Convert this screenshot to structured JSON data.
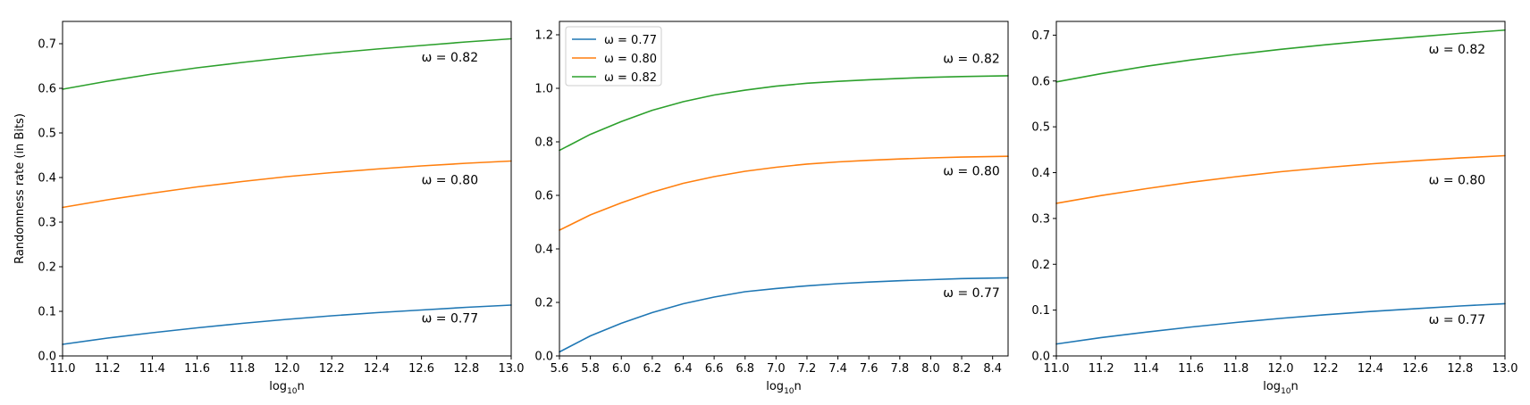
{
  "figure": {
    "background": "#ffffff"
  },
  "chart_data": [
    {
      "type": "line",
      "xlabel": "log10 n",
      "xlabel_main": "log",
      "xlabel_sub": "10",
      "xlabel_tail": "n",
      "ylabel": "Randomness rate (in Bits)",
      "xlim": [
        11.0,
        13.0
      ],
      "ylim": [
        0.0,
        0.75
      ],
      "xticks": [
        11.0,
        11.2,
        11.4,
        11.6,
        11.8,
        12.0,
        12.2,
        12.4,
        12.6,
        12.8,
        13.0
      ],
      "xtick_labels": [
        "11.0",
        "11.2",
        "11.4",
        "11.6",
        "11.8",
        "12.0",
        "12.2",
        "12.4",
        "12.6",
        "12.8",
        "13.0"
      ],
      "yticks": [
        0.0,
        0.1,
        0.2,
        0.3,
        0.4,
        0.5,
        0.6,
        0.7
      ],
      "ytick_labels": [
        "0.0",
        "0.1",
        "0.2",
        "0.3",
        "0.4",
        "0.5",
        "0.6",
        "0.7"
      ],
      "grid": false,
      "legend": null,
      "series": [
        {
          "color": "#1f77b4",
          "x": [
            11.0,
            11.2,
            11.4,
            11.6,
            11.8,
            12.0,
            12.2,
            12.4,
            12.6,
            12.8,
            13.0
          ],
          "y": [
            0.026,
            0.04,
            0.052,
            0.063,
            0.073,
            0.082,
            0.09,
            0.097,
            0.103,
            0.109,
            0.114
          ]
        },
        {
          "color": "#ff7f0e",
          "x": [
            11.0,
            11.2,
            11.4,
            11.6,
            11.8,
            12.0,
            12.2,
            12.4,
            12.6,
            12.8,
            13.0
          ],
          "y": [
            0.333,
            0.35,
            0.365,
            0.379,
            0.391,
            0.402,
            0.411,
            0.419,
            0.426,
            0.432,
            0.437
          ]
        },
        {
          "color": "#2ca02c",
          "x": [
            11.0,
            11.2,
            11.4,
            11.6,
            11.8,
            12.0,
            12.2,
            12.4,
            12.6,
            12.8,
            13.0
          ],
          "y": [
            0.598,
            0.616,
            0.632,
            0.646,
            0.658,
            0.669,
            0.679,
            0.688,
            0.696,
            0.704,
            0.711
          ]
        }
      ],
      "annotations": [
        {
          "text": "ω = 0.82",
          "x": 12.6,
          "y": 0.66
        },
        {
          "text": "ω = 0.80",
          "x": 12.6,
          "y": 0.385
        },
        {
          "text": "ω = 0.77",
          "x": 12.6,
          "y": 0.075
        }
      ]
    },
    {
      "type": "line",
      "xlabel": "log10 n",
      "xlabel_main": "log",
      "xlabel_sub": "10",
      "xlabel_tail": "n",
      "ylabel": "",
      "xlim": [
        5.6,
        8.5
      ],
      "ylim": [
        0.0,
        1.25
      ],
      "xticks": [
        5.6,
        5.8,
        6.0,
        6.2,
        6.4,
        6.6,
        6.8,
        7.0,
        7.2,
        7.4,
        7.6,
        7.8,
        8.0,
        8.2,
        8.4
      ],
      "xtick_labels": [
        "5.6",
        "5.8",
        "6.0",
        "6.2",
        "6.4",
        "6.6",
        "6.8",
        "7.0",
        "7.2",
        "7.4",
        "7.6",
        "7.8",
        "8.0",
        "8.2",
        "8.4"
      ],
      "yticks": [
        0.0,
        0.2,
        0.4,
        0.6,
        0.8,
        1.0,
        1.2
      ],
      "ytick_labels": [
        "0.0",
        "0.2",
        "0.4",
        "0.6",
        "0.8",
        "1.0",
        "1.2"
      ],
      "grid": false,
      "legend": "top-left",
      "series": [
        {
          "name": "ω = 0.77",
          "color": "#1f77b4",
          "x": [
            5.6,
            5.8,
            6.0,
            6.2,
            6.4,
            6.6,
            6.8,
            7.0,
            7.2,
            7.4,
            7.6,
            7.8,
            8.0,
            8.2,
            8.5
          ],
          "y": [
            0.015,
            0.075,
            0.122,
            0.162,
            0.195,
            0.22,
            0.24,
            0.252,
            0.262,
            0.27,
            0.276,
            0.281,
            0.285,
            0.289,
            0.292
          ]
        },
        {
          "name": "ω = 0.80",
          "color": "#ff7f0e",
          "x": [
            5.6,
            5.8,
            6.0,
            6.2,
            6.4,
            6.6,
            6.8,
            7.0,
            7.2,
            7.4,
            7.6,
            7.8,
            8.0,
            8.2,
            8.5
          ],
          "y": [
            0.47,
            0.527,
            0.572,
            0.612,
            0.645,
            0.67,
            0.69,
            0.705,
            0.717,
            0.725,
            0.731,
            0.736,
            0.74,
            0.743,
            0.746
          ]
        },
        {
          "name": "ω = 0.82",
          "color": "#2ca02c",
          "x": [
            5.6,
            5.8,
            6.0,
            6.2,
            6.4,
            6.6,
            6.8,
            7.0,
            7.2,
            7.4,
            7.6,
            7.8,
            8.0,
            8.2,
            8.5
          ],
          "y": [
            0.768,
            0.828,
            0.876,
            0.918,
            0.95,
            0.975,
            0.993,
            1.008,
            1.019,
            1.026,
            1.032,
            1.037,
            1.041,
            1.044,
            1.047
          ]
        }
      ],
      "annotations": [
        {
          "text": "ω = 0.82",
          "x": 8.08,
          "y": 1.095
        },
        {
          "text": "ω = 0.80",
          "x": 8.08,
          "y": 0.675
        },
        {
          "text": "ω = 0.77",
          "x": 8.08,
          "y": 0.22
        }
      ]
    },
    {
      "type": "line",
      "xlabel": "log10 n",
      "xlabel_main": "log",
      "xlabel_sub": "10",
      "xlabel_tail": "n",
      "ylabel": "",
      "xlim": [
        11.0,
        13.0
      ],
      "ylim": [
        0.0,
        0.73
      ],
      "xticks": [
        11.0,
        11.2,
        11.4,
        11.6,
        11.8,
        12.0,
        12.2,
        12.4,
        12.6,
        12.8,
        13.0
      ],
      "xtick_labels": [
        "11.0",
        "11.2",
        "11.4",
        "11.6",
        "11.8",
        "12.0",
        "12.2",
        "12.4",
        "12.6",
        "12.8",
        "13.0"
      ],
      "yticks": [
        0.0,
        0.1,
        0.2,
        0.3,
        0.4,
        0.5,
        0.6,
        0.7
      ],
      "ytick_labels": [
        "0.0",
        "0.1",
        "0.2",
        "0.3",
        "0.4",
        "0.5",
        "0.6",
        "0.7"
      ],
      "grid": false,
      "legend": null,
      "series": [
        {
          "color": "#1f77b4",
          "x": [
            11.0,
            11.2,
            11.4,
            11.6,
            11.8,
            12.0,
            12.2,
            12.4,
            12.6,
            12.8,
            13.0
          ],
          "y": [
            0.026,
            0.04,
            0.052,
            0.063,
            0.073,
            0.082,
            0.09,
            0.097,
            0.103,
            0.109,
            0.114
          ]
        },
        {
          "color": "#ff7f0e",
          "x": [
            11.0,
            11.2,
            11.4,
            11.6,
            11.8,
            12.0,
            12.2,
            12.4,
            12.6,
            12.8,
            13.0
          ],
          "y": [
            0.333,
            0.35,
            0.365,
            0.379,
            0.391,
            0.402,
            0.411,
            0.419,
            0.426,
            0.432,
            0.437
          ]
        },
        {
          "color": "#2ca02c",
          "x": [
            11.0,
            11.2,
            11.4,
            11.6,
            11.8,
            12.0,
            12.2,
            12.4,
            12.6,
            12.8,
            13.0
          ],
          "y": [
            0.598,
            0.616,
            0.632,
            0.646,
            0.658,
            0.669,
            0.679,
            0.688,
            0.696,
            0.704,
            0.711
          ]
        }
      ],
      "annotations": [
        {
          "text": "ω = 0.82",
          "x": 12.66,
          "y": 0.66
        },
        {
          "text": "ω = 0.80",
          "x": 12.66,
          "y": 0.375
        },
        {
          "text": "ω = 0.77",
          "x": 12.66,
          "y": 0.07
        }
      ]
    }
  ]
}
